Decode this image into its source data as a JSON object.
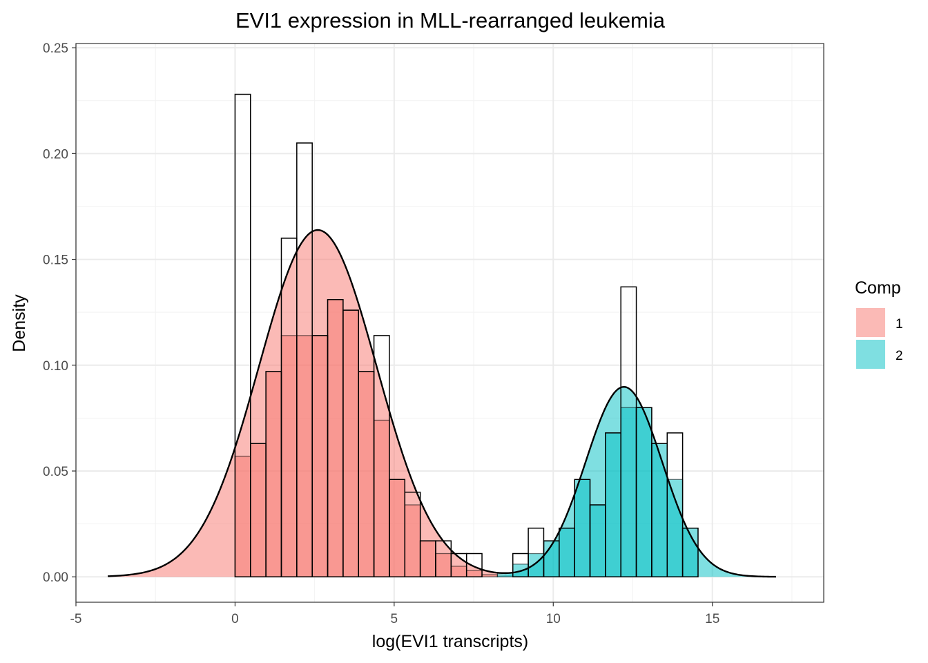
{
  "chart_data": {
    "type": "histogram",
    "title": "EVI1 expression in MLL-rearranged leukemia",
    "xlabel": "log(EVI1 transcripts)",
    "ylabel": "Density",
    "xlim": [
      -5.0,
      18.5
    ],
    "ylim": [
      -0.012,
      0.252
    ],
    "x_ticks": [
      -5,
      0,
      5,
      10,
      15
    ],
    "x_tick_labels": [
      "-5",
      "0",
      "5",
      "10",
      "15"
    ],
    "y_ticks": [
      0,
      0.05,
      0.1,
      0.15,
      0.2,
      0.25
    ],
    "y_tick_labels": [
      "0.00",
      "0.05",
      "0.10",
      "0.15",
      "0.20",
      "0.25"
    ],
    "grid": true,
    "histogram": {
      "bin_width": 0.485,
      "bin_starts": [
        0.0,
        0.485,
        0.97,
        1.455,
        1.94,
        2.425,
        2.91,
        3.395,
        3.88,
        4.365,
        4.85,
        5.335,
        5.82,
        6.305,
        6.79,
        7.275,
        7.76,
        8.245,
        8.73,
        9.215,
        9.7,
        10.185,
        10.67,
        11.155,
        11.64,
        12.125,
        12.61,
        13.095,
        13.58,
        14.065
      ],
      "all_density": [
        0.228,
        0.063,
        0.097,
        0.16,
        0.205,
        0.114,
        0.131,
        0.126,
        0.097,
        0.114,
        0.046,
        0.04,
        0.017,
        0.017,
        0.011,
        0.011,
        0.0,
        0.0,
        0.011,
        0.023,
        0.017,
        0.023,
        0.046,
        0.034,
        0.068,
        0.137,
        0.08,
        0.063,
        0.068,
        0.023
      ],
      "component_density": [
        0.057,
        0.063,
        0.097,
        0.114,
        0.114,
        0.114,
        0.131,
        0.126,
        0.097,
        0.074,
        0.046,
        0.034,
        0.017,
        0.011,
        0.005,
        0.003,
        0.001,
        0.002,
        0.006,
        0.011,
        0.017,
        0.023,
        0.046,
        0.034,
        0.068,
        0.08,
        0.08,
        0.063,
        0.046,
        0.023
      ],
      "component": [
        1,
        1,
        1,
        1,
        1,
        1,
        1,
        1,
        1,
        1,
        1,
        1,
        1,
        1,
        1,
        1,
        1,
        2,
        2,
        2,
        2,
        2,
        2,
        2,
        2,
        2,
        2,
        2,
        2,
        2
      ]
    },
    "density_curve": {
      "x_range": [
        -4.0,
        17.0
      ],
      "components": [
        {
          "name": "1",
          "mean": 2.6,
          "sd": 1.85,
          "weight": 0.76
        },
        {
          "name": "2",
          "mean": 12.22,
          "sd": 1.2,
          "weight": 0.27
        }
      ]
    },
    "series": [
      {
        "name": "1",
        "color": "#F8766D"
      },
      {
        "name": "2",
        "color": "#00BFC4"
      }
    ],
    "legend": {
      "title": "Comp",
      "position": "right"
    }
  }
}
